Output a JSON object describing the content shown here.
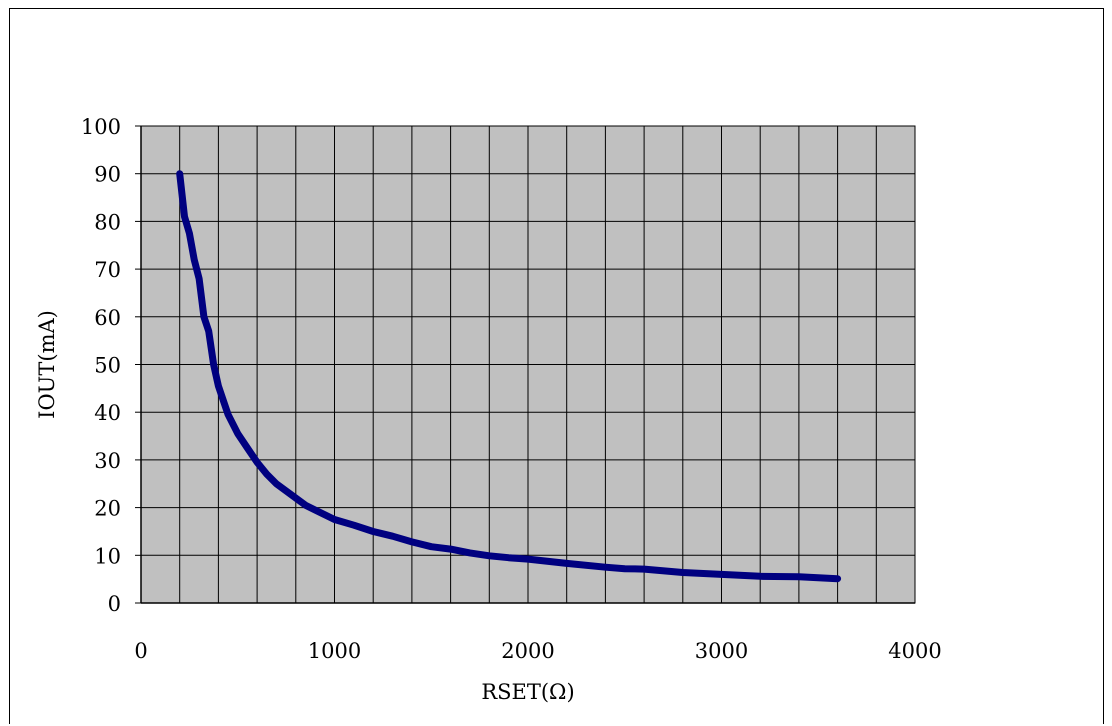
{
  "chart_data": {
    "type": "line",
    "title": "",
    "xlabel": "RSET(Ω)",
    "ylabel": "IOUT(mA)",
    "xlim": [
      0,
      4000
    ],
    "ylim": [
      0,
      100
    ],
    "x_ticks": [
      0,
      1000,
      2000,
      3000,
      4000
    ],
    "y_ticks": [
      0,
      10,
      20,
      30,
      40,
      50,
      60,
      70,
      80,
      90,
      100
    ],
    "x_grid_step": 200,
    "y_grid_step": 10,
    "grid": true,
    "legend": "none",
    "plot_background": "#c0c0c0",
    "line_color": "#000080",
    "series": [
      {
        "x": [
          200,
          225,
          250,
          275,
          300,
          325,
          350,
          375,
          400,
          450,
          500,
          550,
          600,
          650,
          700,
          750,
          800,
          850,
          900,
          950,
          1000,
          1100,
          1200,
          1300,
          1400,
          1500,
          1600,
          1700,
          1800,
          1900,
          2000,
          2200,
          2400,
          2500,
          2600,
          2800,
          3000,
          3200,
          3400,
          3600
        ],
        "y": [
          90,
          81,
          77.5,
          72,
          68,
          60,
          57,
          50,
          45.5,
          39.5,
          35.5,
          32.5,
          29.5,
          27,
          25,
          23.5,
          22,
          20.5,
          19.5,
          18.5,
          17.5,
          16.3,
          15,
          14,
          12.8,
          11.8,
          11.3,
          10.5,
          9.9,
          9.5,
          9.2,
          8.3,
          7.5,
          7.2,
          7.1,
          6.4,
          6,
          5.6,
          5.5,
          5.1
        ]
      }
    ]
  }
}
